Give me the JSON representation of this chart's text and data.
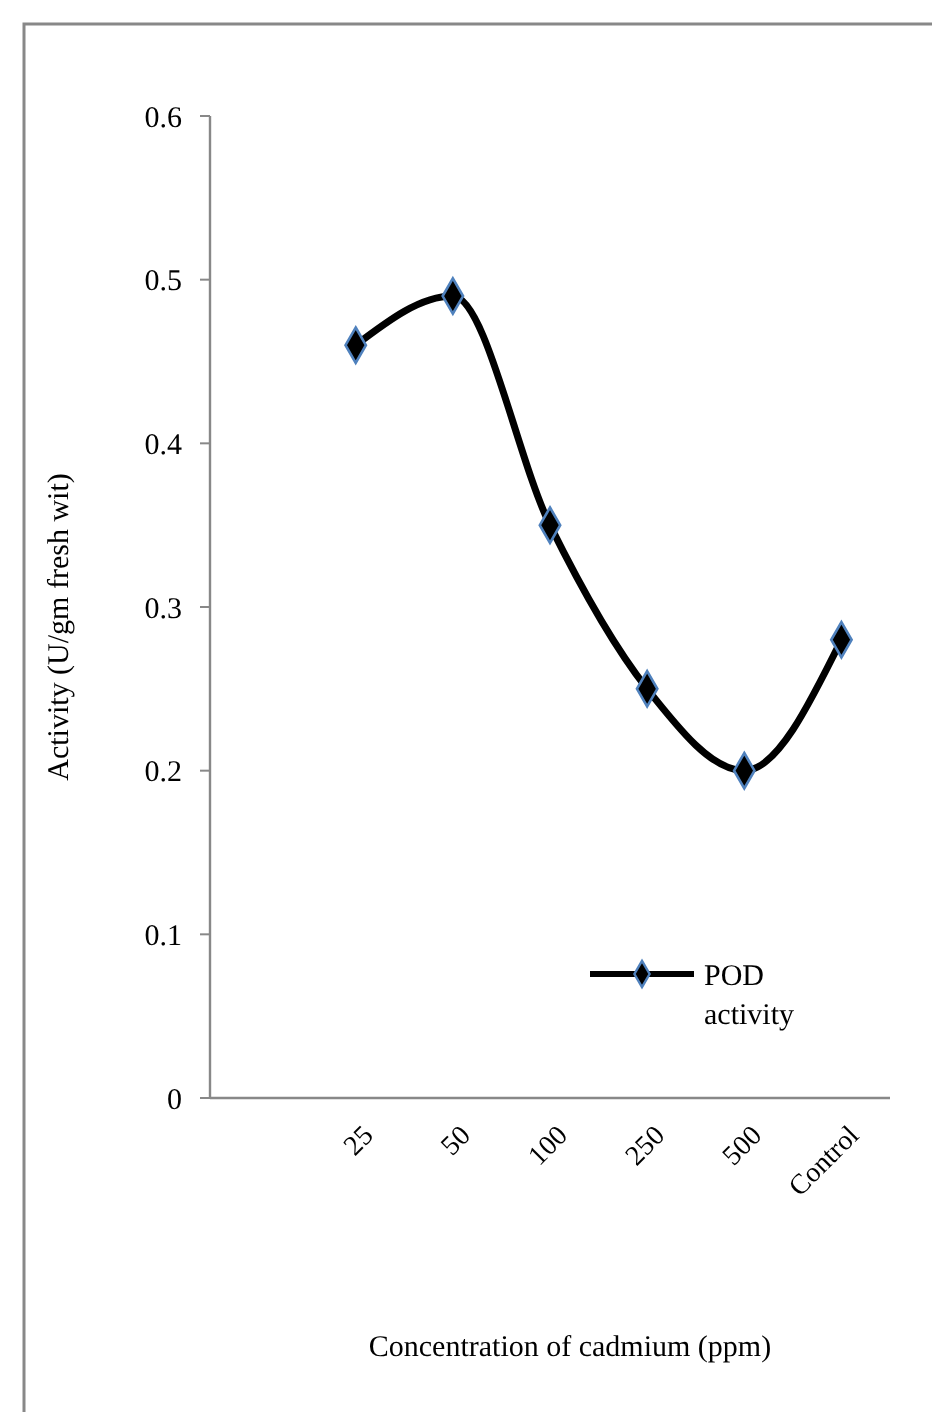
{
  "chart_data": {
    "type": "line",
    "xlabel": "Concentration of cadmium (ppm)",
    "ylabel": "Activity (U/gm fresh wit)",
    "categories": [
      null,
      "25",
      "50",
      "100",
      "250",
      "500",
      "Control"
    ],
    "series": [
      {
        "name": "POD activity",
        "color": "#000000",
        "values": [
          null,
          0.46,
          0.49,
          0.35,
          0.25,
          0.2,
          0.28
        ]
      }
    ],
    "ylim": [
      0,
      0.6
    ],
    "yticks": [
      0,
      0.1,
      0.2,
      0.3,
      0.4,
      0.5,
      0.6
    ],
    "grid": false,
    "legend": "bottom right",
    "marker": "diamond",
    "line_style": "solid"
  }
}
